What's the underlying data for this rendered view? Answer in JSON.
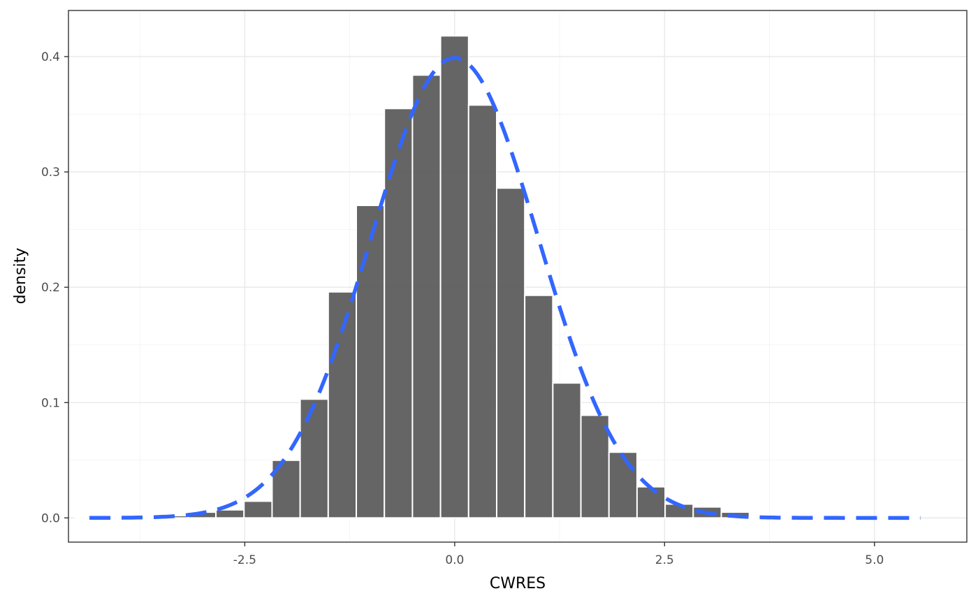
{
  "chart_data": {
    "type": "bar",
    "xlabel": "CWRES",
    "ylabel": "density",
    "xlim": [
      -4.6,
      6.1
    ],
    "ylim": [
      -0.021,
      0.44
    ],
    "x_ticks": [
      -2.5,
      0.0,
      2.5,
      5.0
    ],
    "x_tick_labels": [
      "-2.5",
      "0.0",
      "2.5",
      "5.0"
    ],
    "y_ticks": [
      0.0,
      0.1,
      0.2,
      0.3,
      0.4
    ],
    "y_tick_labels": [
      "0.0",
      "0.1",
      "0.2",
      "0.3",
      "0.4"
    ],
    "grid": true,
    "bin_width": 0.3344,
    "bin_centers": [
      -4.3485,
      -4.0141,
      -3.6797,
      -3.3453,
      -3.0109,
      -2.6765,
      -2.3421,
      -2.0077,
      -1.6733,
      -1.3389,
      -1.0045,
      -0.6701,
      -0.3357,
      -0.0013,
      0.3331,
      0.6675,
      1.0019,
      1.3363,
      1.6707,
      2.0051,
      2.3395,
      2.6739,
      3.0083,
      3.3427,
      3.6771,
      4.0115,
      4.3459,
      4.6803,
      5.0147,
      5.3491
    ],
    "density": [
      0.0001,
      0.0003,
      0.0007,
      0.002,
      0.005,
      0.007,
      0.0145,
      0.05,
      0.103,
      0.196,
      0.271,
      0.355,
      0.384,
      0.418,
      0.358,
      0.286,
      0.193,
      0.117,
      0.089,
      0.057,
      0.027,
      0.012,
      0.0095,
      0.005,
      0.001,
      0.0005,
      0.0003,
      0.0002,
      0.0001,
      0.0001
    ],
    "bar_color": "#595959",
    "bar_outline": "#ffffff",
    "overlay": {
      "type": "line",
      "style": "dashed",
      "color": "#3366FF",
      "curve": "standard normal density",
      "x_range": [
        -4.35,
        5.55
      ]
    }
  }
}
